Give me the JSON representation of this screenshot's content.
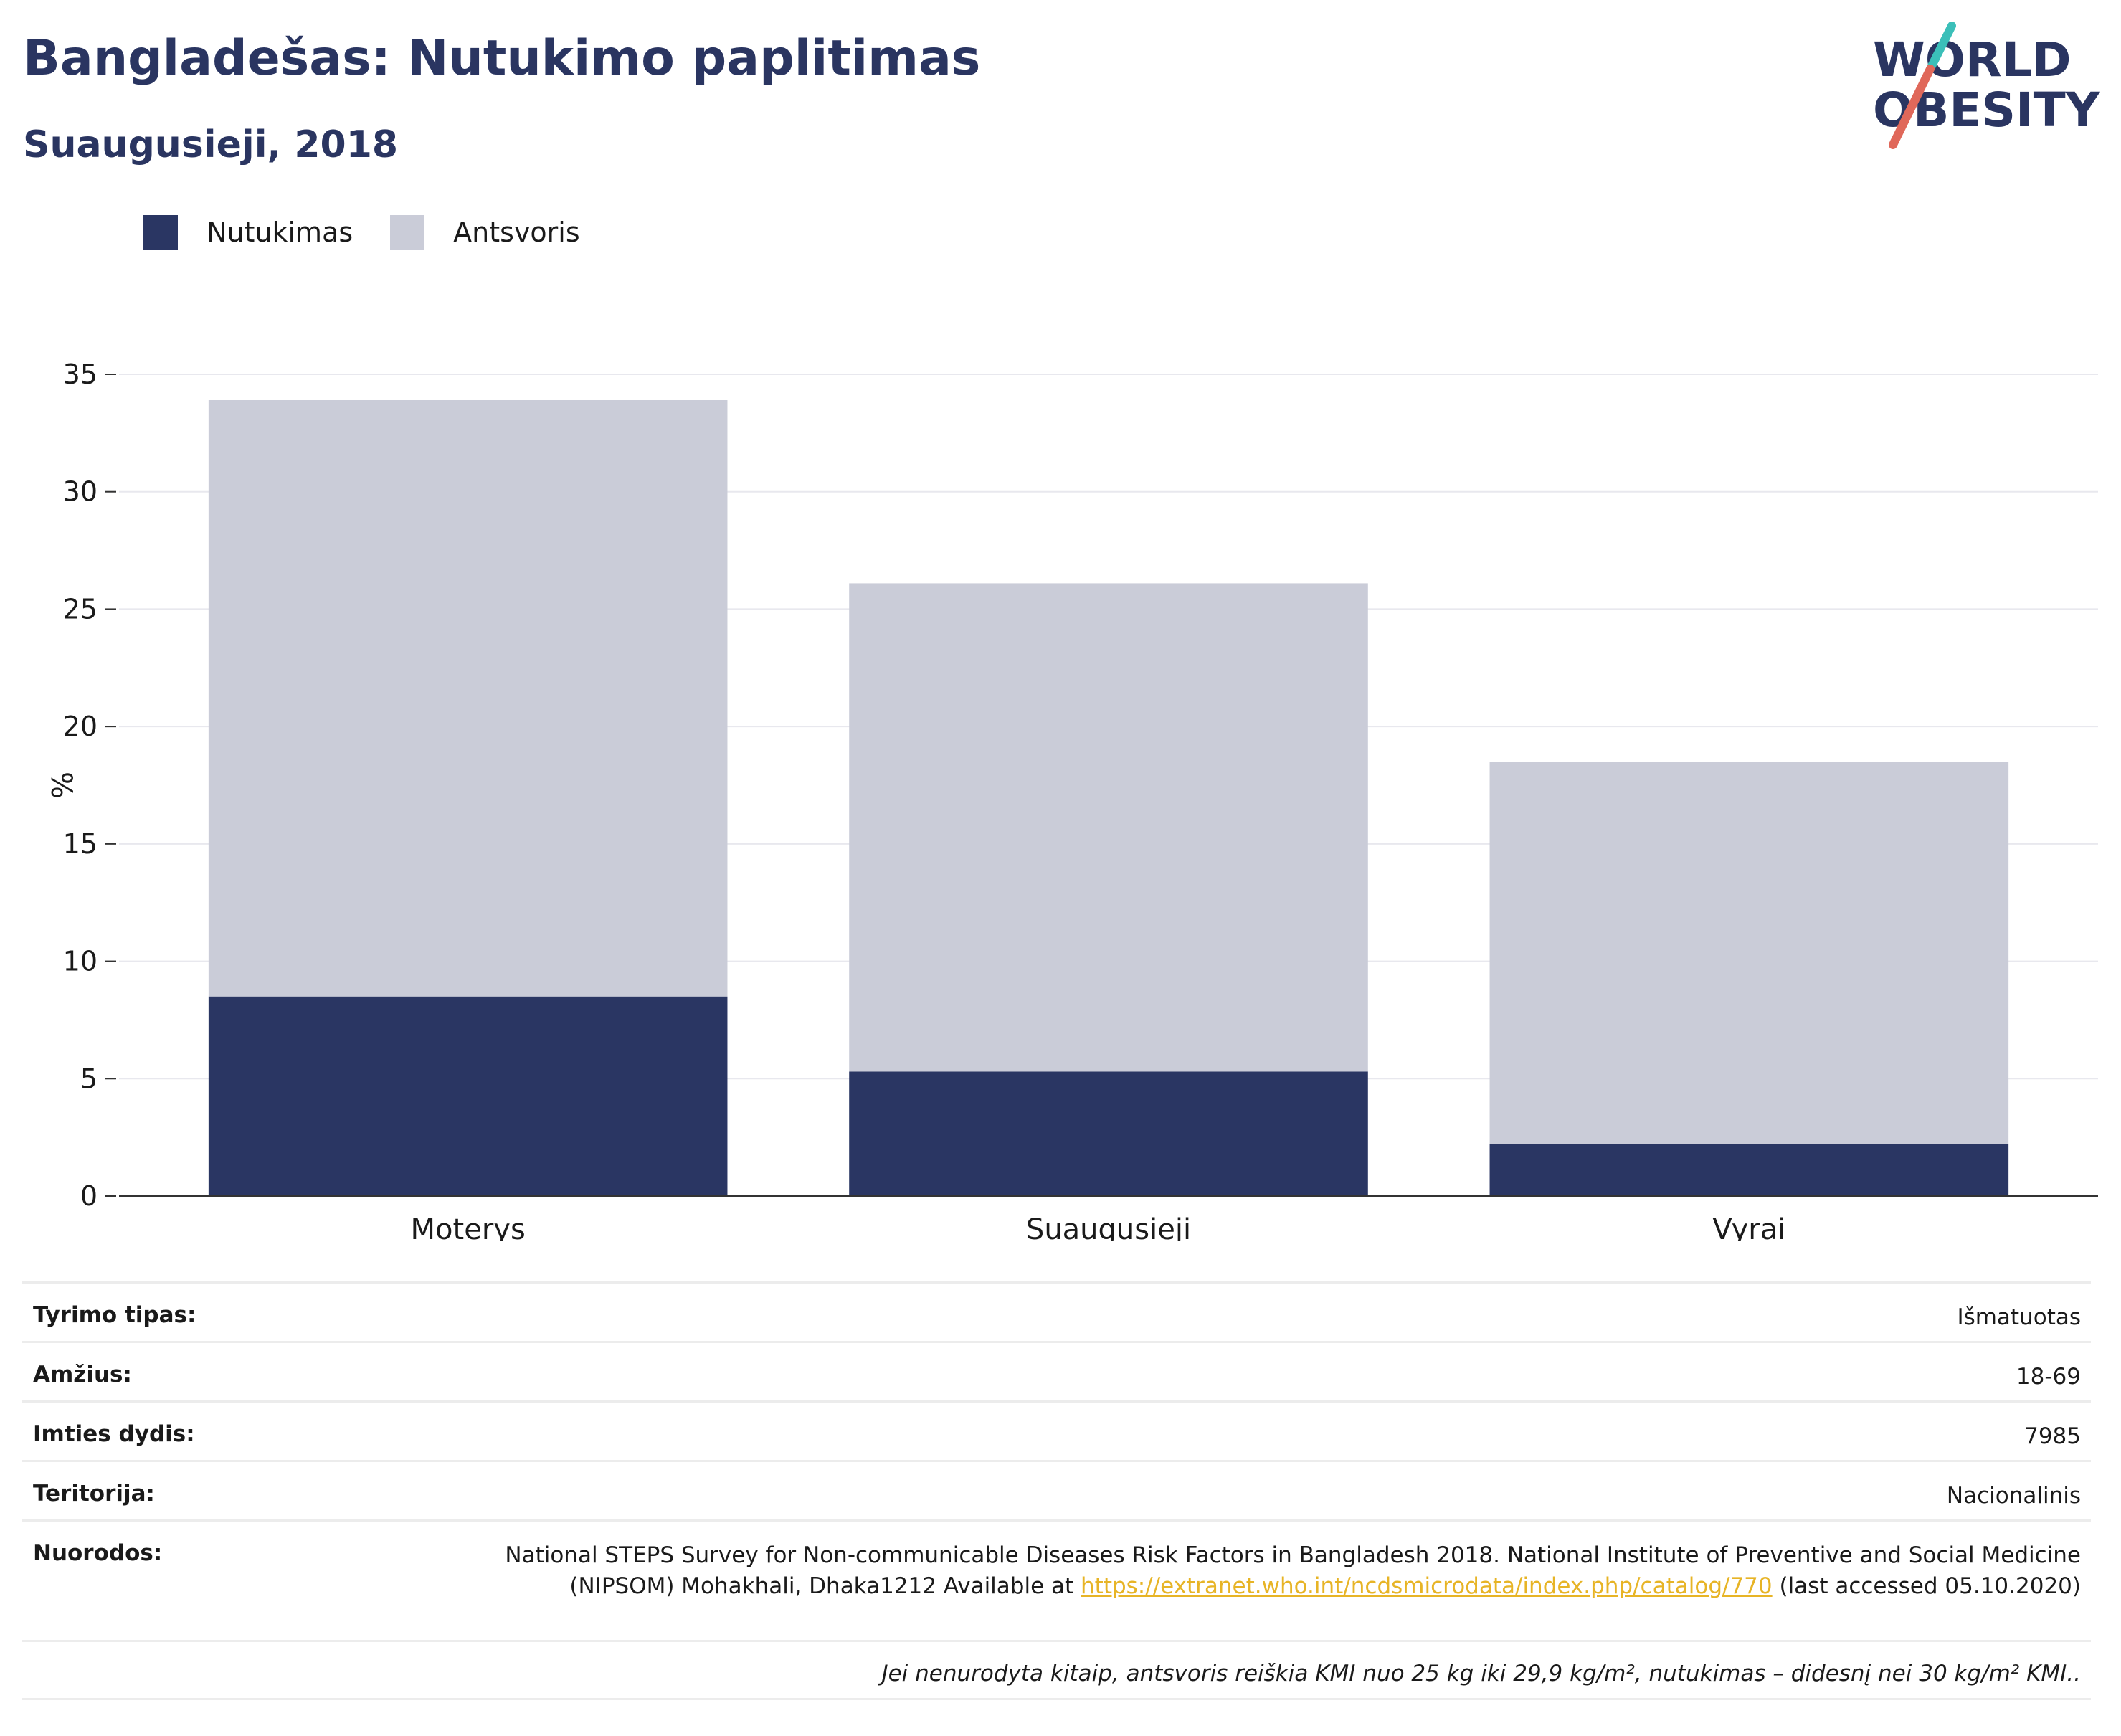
{
  "header": {
    "title": "Bangladešas: Nutukimo paplitimas",
    "subtitle": "Suaugusieji, 2018"
  },
  "logo": {
    "line1": "WORLD",
    "line2": "OBESITY",
    "icon": "world-obesity-logo-icon",
    "colors": {
      "text": "#2a3561",
      "slash_top": "#3bbfb9",
      "slash_bottom": "#e0685a"
    }
  },
  "legend": {
    "items": [
      {
        "label": "Nutukimas",
        "color": "#2a3663"
      },
      {
        "label": "Antsvoris",
        "color": "#caccd8"
      }
    ]
  },
  "chart_data": {
    "type": "bar",
    "stacked": true,
    "categories": [
      "Moterys",
      "Suaugusieji",
      "Vyrai"
    ],
    "series": [
      {
        "name": "Nutukimas",
        "values": [
          8.5,
          5.3,
          2.2
        ],
        "color": "#2a3663"
      },
      {
        "name": "Antsvoris",
        "values": [
          25.4,
          20.8,
          16.3
        ],
        "color": "#caccd8"
      }
    ],
    "ylabel": "%",
    "ylim": [
      0,
      35
    ],
    "yticks": [
      0,
      5,
      10,
      15,
      20,
      25,
      30,
      35
    ],
    "grid": true,
    "legend_position": "top-left"
  },
  "info": {
    "rows": [
      {
        "label": "Tyrimo tipas:",
        "value": "Išmatuotas"
      },
      {
        "label": "Amžius:",
        "value": "18-69"
      },
      {
        "label": "Imties dydis:",
        "value": "7985"
      },
      {
        "label": "Teritorija:",
        "value": "Nacionalinis"
      }
    ],
    "references": {
      "label": "Nuorodos:",
      "text_before": "National STEPS Survey for Non-communicable Diseases Risk Factors in Bangladesh 2018. National Institute of Preventive and Social Medicine (NIPSOM) Mohakhali, Dhaka1212 Available at ",
      "link": "https://extranet.who.int/ncdsmicrodata/index.php/catalog/770",
      "text_after": " (last accessed 05.10.2020)"
    },
    "note": "Jei nenurodyta kitaip, antsvoris reiškia KMI nuo 25 kg iki 29,9 kg/m², nutukimas – didesnį nei 30 kg/m² KMI.."
  }
}
